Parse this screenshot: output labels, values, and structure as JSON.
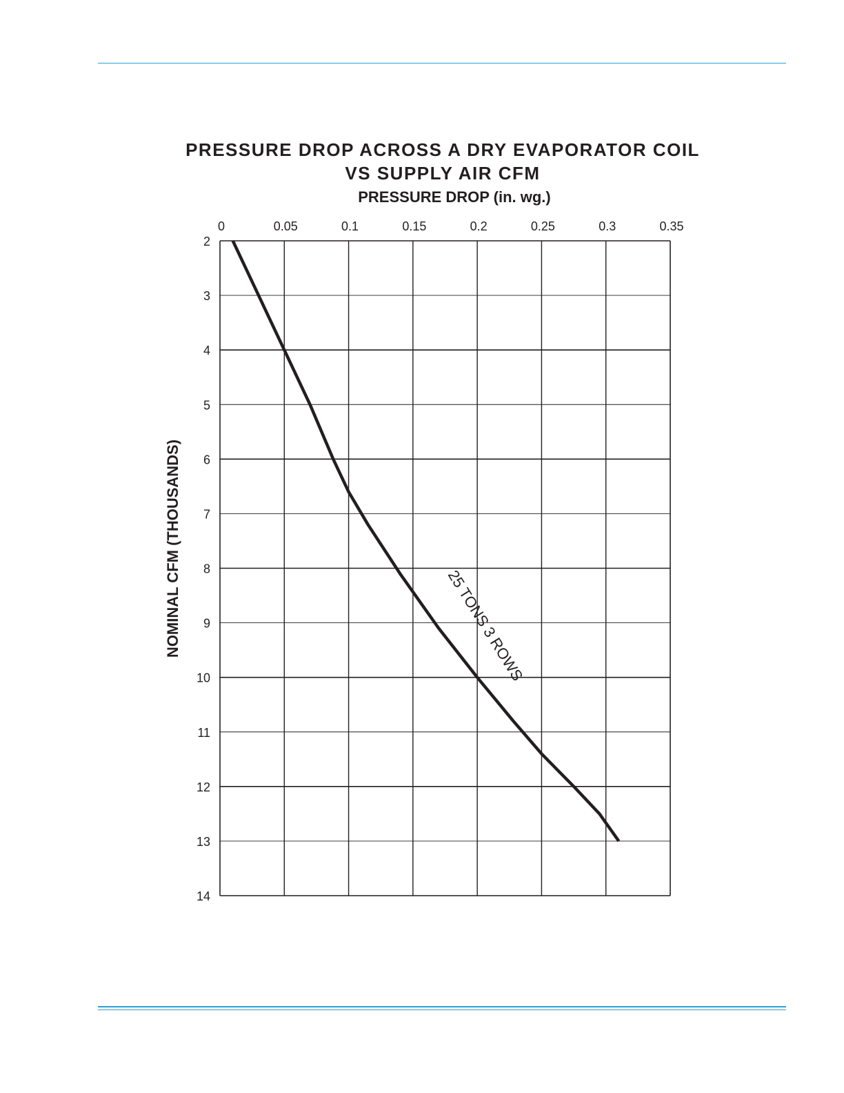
{
  "page": {
    "rule_color": "#2a9fd6"
  },
  "chart_data": {
    "type": "line",
    "title": "PRESSURE DROP ACROSS A DRY EVAPORATOR COIL",
    "subtitle": "VS SUPPLY AIR CFM",
    "xlabel": "PRESSURE DROP (in. wg.)",
    "ylabel": "NOMINAL CFM (THOUSANDS)",
    "x_axis_position": "top",
    "y_axis_inverted": true,
    "xlim": [
      0,
      0.35
    ],
    "ylim": [
      2,
      14
    ],
    "x_ticks": [
      "0",
      "0.05",
      "0.1",
      "0.15",
      "0.2",
      "0.25",
      "0.3",
      "0.35"
    ],
    "y_ticks": [
      "2",
      "3",
      "4",
      "5",
      "6",
      "7",
      "8",
      "9",
      "10",
      "11",
      "12",
      "13",
      "14"
    ],
    "grid": true,
    "series": [
      {
        "name": "25 TONS 3 ROWS",
        "color": "#231f20",
        "x": [
          0.01,
          0.03,
          0.04,
          0.05,
          0.07,
          0.088,
          0.1,
          0.115,
          0.14,
          0.17,
          0.2,
          0.228,
          0.25,
          0.275,
          0.295,
          0.31
        ],
        "y": [
          2.0,
          3.0,
          3.5,
          4.0,
          5.0,
          6.0,
          6.6,
          7.2,
          8.1,
          9.1,
          10.0,
          10.8,
          11.4,
          12.0,
          12.5,
          13.0
        ]
      }
    ],
    "annotations": [
      {
        "text": "25 TONS 3 ROWS",
        "x": 0.203,
        "y": 9.1
      }
    ]
  }
}
